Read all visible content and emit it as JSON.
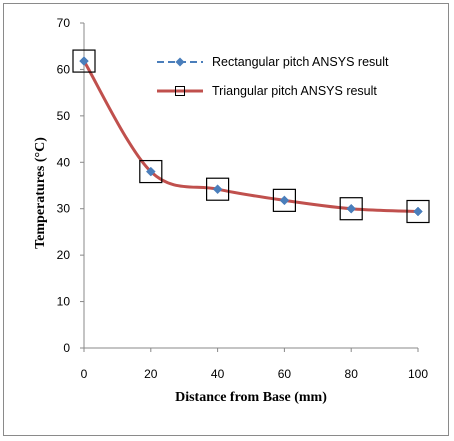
{
  "chart_data": {
    "type": "line",
    "xlabel": "Distance from Base (mm)",
    "ylabel": "Temperatures (°C)",
    "xlim": [
      0,
      100
    ],
    "ylim": [
      0,
      70
    ],
    "x_ticks": [
      "0",
      "20",
      "40",
      "60",
      "80",
      "100"
    ],
    "y_ticks": [
      "0",
      "10",
      "20",
      "30",
      "40",
      "50",
      "60",
      "70"
    ],
    "grid": false,
    "legend_position": "top-right",
    "x": [
      0,
      20,
      40,
      60,
      80,
      100
    ],
    "series": [
      {
        "name": "Rectangular pitch ANSYS result",
        "values": [
          61.8,
          38.0,
          34.2,
          31.8,
          30.0,
          29.4
        ],
        "color": "#4a7ebb",
        "line_style": "dashed",
        "marker": "diamond"
      },
      {
        "name": "Triangular pitch ANSYS result",
        "values": [
          61.8,
          38.0,
          34.2,
          31.8,
          30.0,
          29.4
        ],
        "color": "#c0504d",
        "line_style": "solid",
        "marker": "square-open"
      }
    ]
  }
}
